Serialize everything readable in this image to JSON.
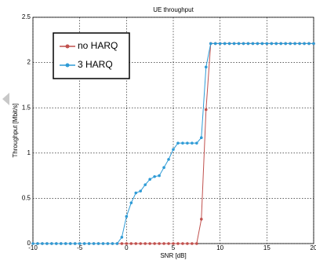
{
  "chart_data": {
    "type": "line",
    "title": "UE throughput",
    "x_label": "SNR [dB]",
    "y_label": "Throughput [Mbit/s]",
    "x": [
      -10,
      -9.5,
      -9,
      -8.5,
      -8,
      -7.5,
      -7,
      -6.5,
      -6,
      -5.5,
      -5,
      -4.5,
      -4,
      -3.5,
      -3,
      -2.5,
      -2,
      -1.5,
      -1,
      -0.5,
      0,
      0.5,
      1,
      1.5,
      2,
      2.5,
      3,
      3.5,
      4,
      4.5,
      5,
      5.5,
      6,
      6.5,
      7,
      7.5,
      8,
      8.5,
      9,
      9.5,
      10,
      10.5,
      11,
      11.5,
      12,
      12.5,
      13,
      13.5,
      14,
      14.5,
      15,
      15.5,
      16,
      16.5,
      17,
      17.5,
      18,
      18.5,
      19,
      19.5,
      20
    ],
    "series": [
      {
        "name": "no HARQ",
        "color": "#c0504d",
        "values": [
          0,
          0,
          0,
          0,
          0,
          0,
          0,
          0,
          0,
          0,
          0,
          0,
          0,
          0,
          0,
          0,
          0,
          0,
          0,
          0,
          0,
          0,
          0,
          0,
          0,
          0,
          0,
          0,
          0,
          0,
          0,
          0,
          0,
          0,
          0,
          0,
          0.27,
          1.48,
          2.21,
          2.21,
          2.21,
          2.21,
          2.21,
          2.21,
          2.21,
          2.21,
          2.21,
          2.21,
          2.21,
          2.21,
          2.21,
          2.21,
          2.21,
          2.21,
          2.21,
          2.21,
          2.21,
          2.21,
          2.21,
          2.21,
          2.21
        ]
      },
      {
        "name": "3 HARQ",
        "color": "#2e9bd6",
        "values": [
          0,
          0,
          0,
          0,
          0,
          0,
          0,
          0,
          0,
          0,
          0,
          0,
          0,
          0,
          0,
          0,
          0,
          0,
          0,
          0.07,
          0.3,
          0.45,
          0.56,
          0.58,
          0.65,
          0.71,
          0.74,
          0.75,
          0.84,
          0.93,
          1.04,
          1.11,
          1.11,
          1.11,
          1.11,
          1.11,
          1.17,
          1.95,
          2.21,
          2.21,
          2.21,
          2.21,
          2.21,
          2.21,
          2.21,
          2.21,
          2.21,
          2.21,
          2.21,
          2.21,
          2.21,
          2.21,
          2.21,
          2.21,
          2.21,
          2.21,
          2.21,
          2.21,
          2.21,
          2.21,
          2.21
        ]
      }
    ],
    "xlim": [
      -10,
      20
    ],
    "xticks": [
      -10,
      -5,
      0,
      5,
      10,
      15,
      20
    ],
    "ylim": [
      0,
      2.5
    ],
    "yticks": [
      0,
      0.5,
      1,
      1.5,
      2,
      2.5
    ],
    "grid": true,
    "legend": "upper left"
  }
}
